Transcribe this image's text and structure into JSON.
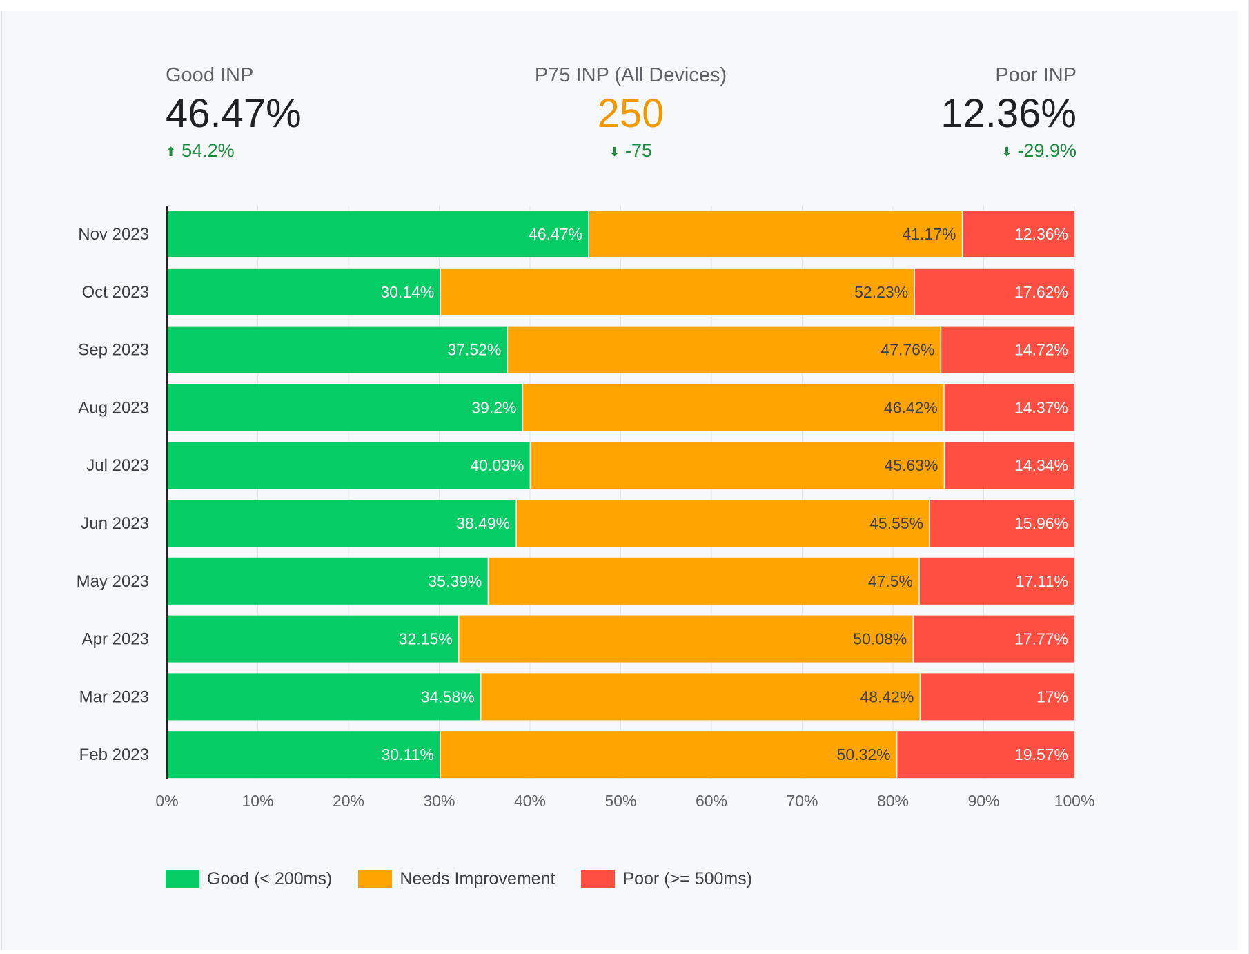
{
  "kpis": {
    "good": {
      "label": "Good INP",
      "value": "46.47%",
      "delta": "54.2%",
      "arrow_icon": "arrow-up-icon"
    },
    "p75": {
      "label": "P75 INP (All Devices)",
      "value": "250",
      "delta": "-75",
      "arrow_icon": "arrow-down-icon"
    },
    "poor": {
      "label": "Poor INP",
      "value": "12.36%",
      "delta": "-29.9%",
      "arrow_icon": "arrow-down-icon"
    }
  },
  "colors": {
    "good": "#06cc66",
    "needs": "#ffa400",
    "poor": "#ff4e42",
    "value_accent": "#f29900",
    "delta": "#1e8e3e"
  },
  "chart_data": {
    "type": "bar",
    "orientation": "horizontal",
    "stacked": true,
    "categories": [
      "Nov 2023",
      "Oct 2023",
      "Sep 2023",
      "Aug 2023",
      "Jul 2023",
      "Jun 2023",
      "May 2023",
      "Apr 2023",
      "Mar 2023",
      "Feb 2023"
    ],
    "series": [
      {
        "name": "Good (< 200ms)",
        "color": "#06cc66",
        "values": [
          46.47,
          30.14,
          37.52,
          39.2,
          40.03,
          38.49,
          35.39,
          32.15,
          34.58,
          30.11
        ],
        "labels": [
          "46.47%",
          "30.14%",
          "37.52%",
          "39.2%",
          "40.03%",
          "38.49%",
          "35.39%",
          "32.15%",
          "34.58%",
          "30.11%"
        ]
      },
      {
        "name": "Needs Improvement",
        "color": "#ffa400",
        "values": [
          41.17,
          52.23,
          47.76,
          46.42,
          45.63,
          45.55,
          47.5,
          50.08,
          48.42,
          50.32
        ],
        "labels": [
          "41.17%",
          "52.23%",
          "47.76%",
          "46.42%",
          "45.63%",
          "45.55%",
          "47.5%",
          "50.08%",
          "48.42%",
          "50.32%"
        ]
      },
      {
        "name": "Poor (>= 500ms)",
        "color": "#ff4e42",
        "values": [
          12.36,
          17.62,
          14.72,
          14.37,
          14.34,
          15.96,
          17.11,
          17.77,
          17,
          19.57
        ],
        "labels": [
          "12.36%",
          "17.62%",
          "14.72%",
          "14.37%",
          "14.34%",
          "15.96%",
          "17.11%",
          "17.77%",
          "17%",
          "19.57%"
        ]
      }
    ],
    "x_ticks": [
      "0%",
      "10%",
      "20%",
      "30%",
      "40%",
      "50%",
      "60%",
      "70%",
      "80%",
      "90%",
      "100%"
    ],
    "xlim": [
      0,
      100
    ],
    "grid": true,
    "legend_position": "bottom-left",
    "title": "",
    "xlabel": "",
    "ylabel": ""
  }
}
